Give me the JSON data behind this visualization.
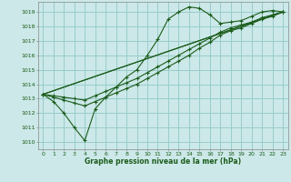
{
  "title": "Graphe pression niveau de la mer (hPa)",
  "bg_color": "#cce8e8",
  "grid_color": "#99cccc",
  "line_color": "#1a5c1a",
  "xlim": [
    -0.5,
    23.5
  ],
  "ylim": [
    1009.5,
    1019.7
  ],
  "yticks": [
    1010,
    1011,
    1012,
    1013,
    1014,
    1015,
    1016,
    1017,
    1018,
    1019
  ],
  "xticks": [
    0,
    1,
    2,
    3,
    4,
    5,
    6,
    7,
    8,
    9,
    10,
    11,
    12,
    13,
    14,
    15,
    16,
    17,
    18,
    19,
    20,
    21,
    22,
    23
  ],
  "series1_x": [
    0,
    1,
    2,
    3,
    4,
    5,
    6,
    7,
    8,
    9,
    10,
    11,
    12,
    13,
    14,
    15,
    16,
    17,
    18,
    19,
    20,
    21,
    22,
    23
  ],
  "series1_y": [
    1013.3,
    1012.8,
    1012.0,
    1011.0,
    1010.1,
    1012.3,
    1013.1,
    1013.8,
    1014.5,
    1015.0,
    1016.0,
    1017.1,
    1018.5,
    1019.0,
    1019.35,
    1019.25,
    1018.8,
    1018.2,
    1018.3,
    1018.4,
    1018.7,
    1019.0,
    1019.1,
    1019.0
  ],
  "series2_x": [
    0,
    23
  ],
  "series2_y": [
    1013.3,
    1019.0
  ],
  "series3_x": [
    0,
    23
  ],
  "series3_y": [
    1013.3,
    1019.0
  ],
  "series2b_x": [
    0,
    1,
    2,
    3,
    4,
    5,
    6,
    7,
    8,
    9,
    10,
    11,
    12,
    13,
    14,
    15,
    16,
    17,
    18,
    19,
    20,
    21,
    22,
    23
  ],
  "series2b_y": [
    1013.3,
    1013.2,
    1013.1,
    1013.0,
    1012.9,
    1013.2,
    1013.5,
    1013.8,
    1014.1,
    1014.4,
    1014.8,
    1015.2,
    1015.6,
    1016.0,
    1016.4,
    1016.8,
    1017.2,
    1017.6,
    1017.9,
    1018.1,
    1018.3,
    1018.6,
    1018.8,
    1019.0
  ],
  "series3b_x": [
    0,
    1,
    2,
    3,
    4,
    5,
    6,
    7,
    8,
    9,
    10,
    11,
    12,
    13,
    14,
    15,
    16,
    17,
    18,
    19,
    20,
    21,
    22,
    23
  ],
  "series3b_y": [
    1013.3,
    1013.1,
    1012.9,
    1012.7,
    1012.5,
    1012.8,
    1013.1,
    1013.4,
    1013.7,
    1014.0,
    1014.4,
    1014.8,
    1015.2,
    1015.6,
    1016.0,
    1016.5,
    1016.9,
    1017.4,
    1017.7,
    1017.9,
    1018.2,
    1018.5,
    1018.7,
    1019.0
  ]
}
